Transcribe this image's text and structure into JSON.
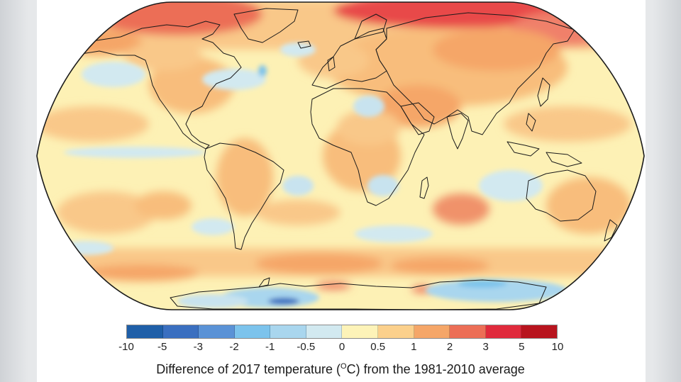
{
  "map": {
    "projection": "Robinson",
    "description_label": "world-temperature-anomaly-map"
  },
  "legend": {
    "bins": [
      {
        "color": "#1f5fa8"
      },
      {
        "color": "#3a6fc0"
      },
      {
        "color": "#5a92d6"
      },
      {
        "color": "#7cc3ec"
      },
      {
        "color": "#a9d6ee"
      },
      {
        "color": "#d2e9f0"
      },
      {
        "color": "#fdf3b8"
      },
      {
        "color": "#fbd08c"
      },
      {
        "color": "#f5a668"
      },
      {
        "color": "#ec6e56"
      },
      {
        "color": "#e02a3c"
      },
      {
        "color": "#b8141e"
      }
    ],
    "ticks": [
      "-10",
      "-5",
      "-3",
      "-2",
      "-1",
      "-0.5",
      "0",
      "0.5",
      "1",
      "2",
      "3",
      "5",
      "10"
    ]
  },
  "caption": {
    "before": "Difference of 2017 temperature (",
    "superscript": "O",
    "after": "C) from the 1981-2010 average"
  }
}
